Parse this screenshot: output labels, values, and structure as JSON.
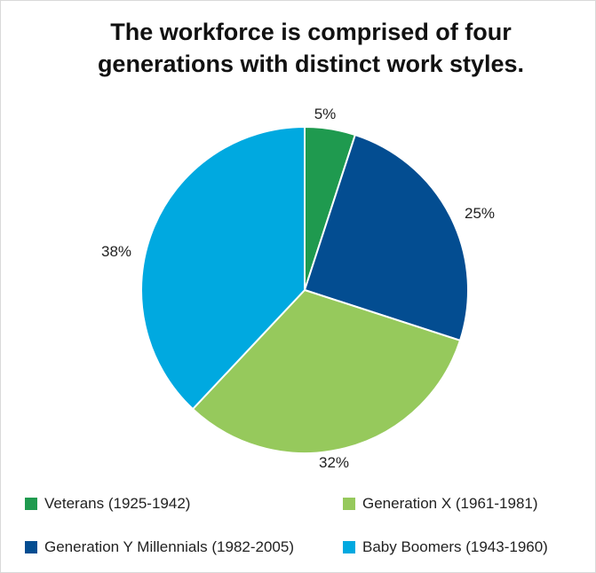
{
  "title_line1": "The workforce is comprised of four",
  "title_line2": "generations with distinct work styles.",
  "chart_data": {
    "type": "pie",
    "title": "The workforce is comprised of four generations with distinct work styles.",
    "slices": [
      {
        "name": "Veterans (1925-1942)",
        "value": 5,
        "label": "5%",
        "color": "#1f9a4f"
      },
      {
        "name": "Generation Y Millennials (1982-2005)",
        "value": 25,
        "label": "25%",
        "color": "#034d91"
      },
      {
        "name": "Generation X (1961-1981)",
        "value": 32,
        "label": "32%",
        "color": "#96c95c"
      },
      {
        "name": "Baby Boomers (1943-1960)",
        "value": 38,
        "label": "38%",
        "color": "#00a9e0"
      }
    ],
    "legend": [
      {
        "label": "Veterans (1925-1942)",
        "color": "#1f9a4f"
      },
      {
        "label": "Generation X (1961-1981)",
        "color": "#96c95c"
      },
      {
        "label": "Generation Y Millennials (1982-2005)",
        "color": "#034d91"
      },
      {
        "label": "Baby Boomers (1943-1960)",
        "color": "#00a9e0"
      }
    ],
    "legend_placement": "bottom"
  }
}
